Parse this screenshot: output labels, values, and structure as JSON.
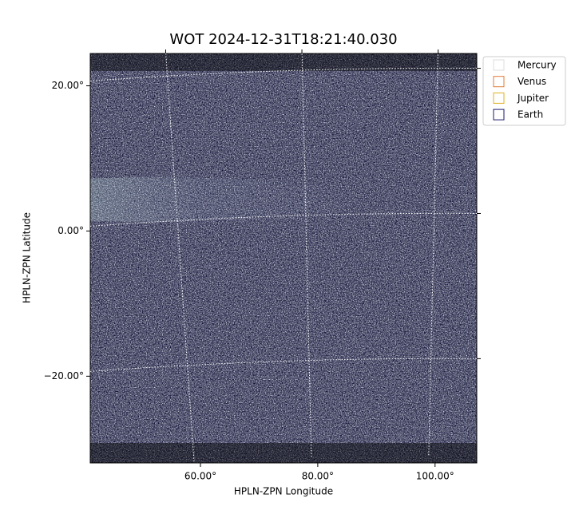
{
  "chart_data": {
    "type": "image",
    "title": "WOT 2024-12-31T18:21:40.030",
    "x_label": "HPLN-ZPN Longitude",
    "y_label": "HPLN-ZPN Latitude",
    "xlim": [
      42.3,
      108.2
    ],
    "ylim": [
      -33.3,
      23.1
    ],
    "xticks": [
      {
        "value": 60,
        "label": "60.00°"
      },
      {
        "value": 80,
        "label": "80.00°"
      },
      {
        "value": 100,
        "label": "100.00°"
      }
    ],
    "yticks": [
      {
        "value": -20,
        "label": "−20.00°"
      },
      {
        "value": 0,
        "label": "0.00°"
      },
      {
        "value": 20,
        "label": "20.00°"
      }
    ],
    "grid": true,
    "legend": {
      "position": "outside right",
      "entries": [
        {
          "name": "Mercury",
          "color": "#dddddd"
        },
        {
          "name": "Venus",
          "color": "#e07b39"
        },
        {
          "name": "Jupiter",
          "color": "#e0b020"
        },
        {
          "name": "Earth",
          "color": "#1a1a70"
        }
      ]
    }
  }
}
